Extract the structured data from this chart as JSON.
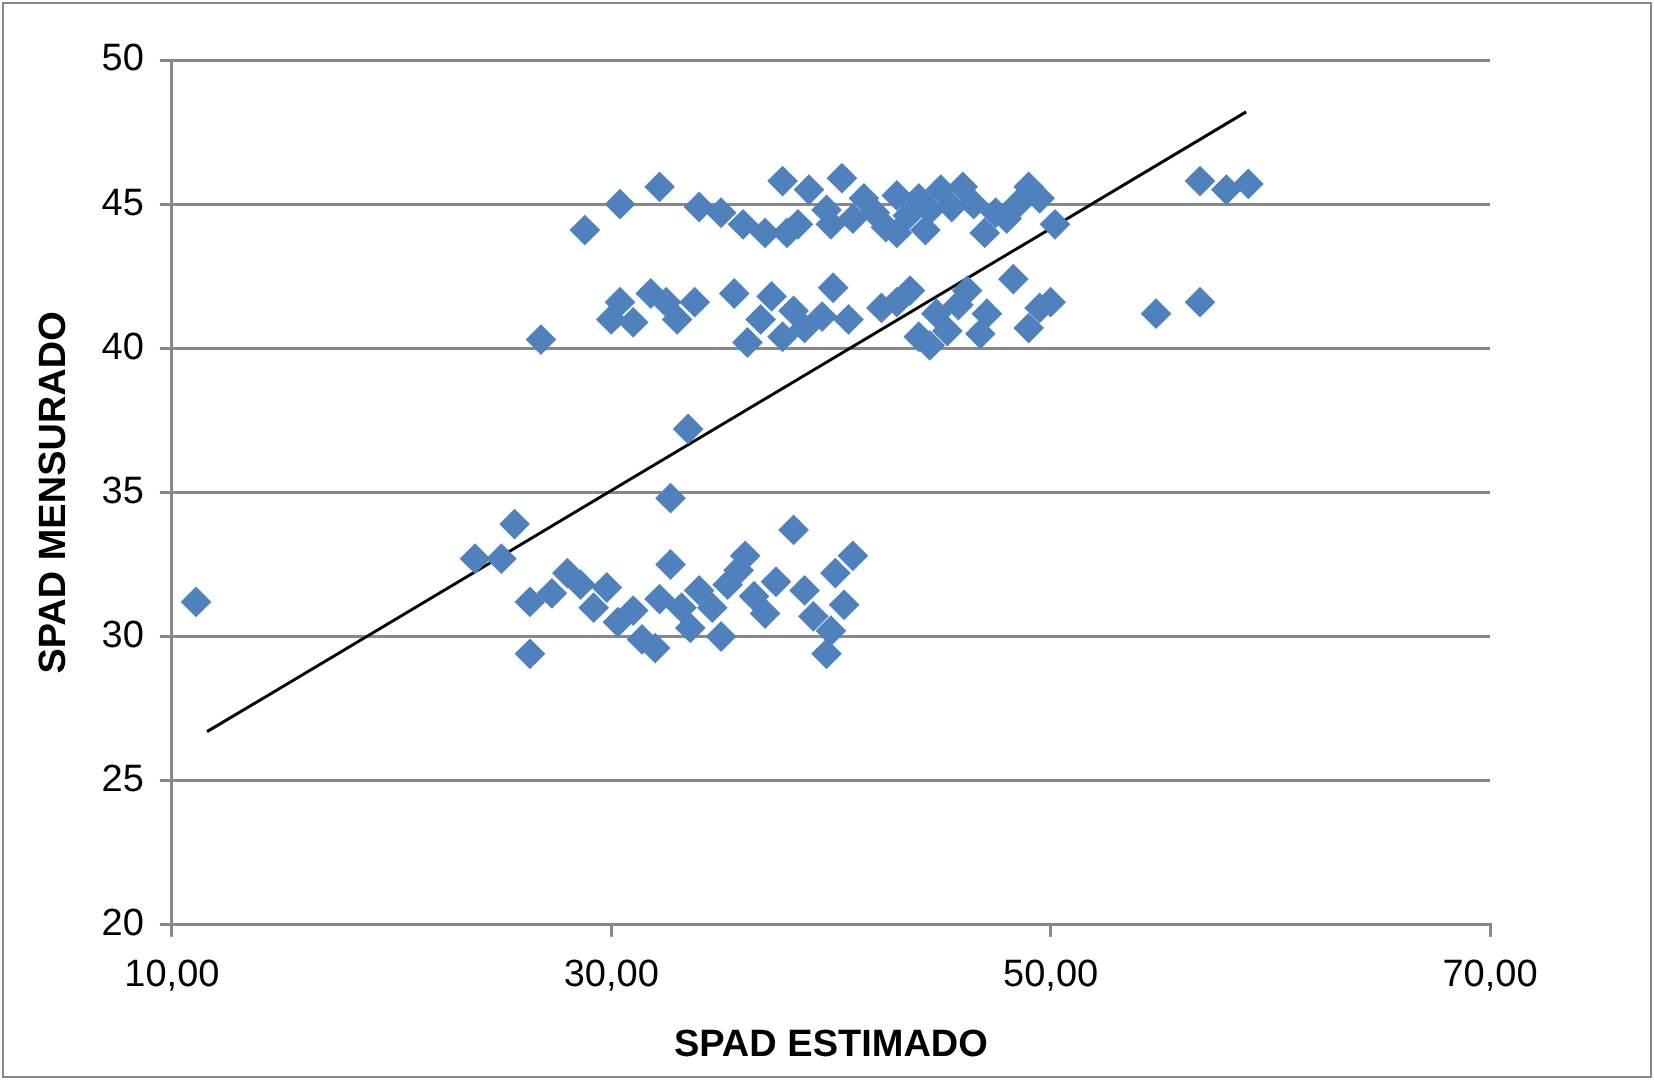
{
  "chart_data": {
    "type": "scatter",
    "xlabel": "SPAD ESTIMADO",
    "ylabel": "SPAD MENSURADO",
    "xlim": [
      10,
      70
    ],
    "xticks": [
      {
        "value": 10,
        "label": "10,00"
      },
      {
        "value": 30,
        "label": "30,00"
      },
      {
        "value": 50,
        "label": "50,00"
      },
      {
        "value": 70,
        "label": "70,00"
      }
    ],
    "ylim": [
      20,
      50
    ],
    "yticks": [
      20,
      25,
      30,
      35,
      40,
      45,
      50
    ],
    "grid": "y",
    "marker": "diamond",
    "series": [
      {
        "color": "#4f81bd",
        "x": [
          28.8,
          30.4,
          32.2,
          34.0,
          35.0,
          36.0,
          37.0,
          37.8,
          38.5,
          39.0,
          39.8,
          40.5,
          41.0,
          41.5,
          42.0,
          42.5,
          43.0,
          43.5,
          44.0,
          44.5,
          45.0,
          45.5,
          46.0,
          46.5,
          47.0,
          47.5,
          48.0,
          48.5,
          49.0,
          49.5,
          50.2,
          56.8,
          58.0,
          59.0,
          38.0,
          40.0,
          43.0,
          44.3,
          26.8,
          30.0,
          30.4,
          31.0,
          31.8,
          32.5,
          33.0,
          33.8,
          35.6,
          36.2,
          36.8,
          37.3,
          37.8,
          38.3,
          38.8,
          39.6,
          40.1,
          40.8,
          42.3,
          43.0,
          43.6,
          44.0,
          44.5,
          44.8,
          45.3,
          45.8,
          46.2,
          46.8,
          47.1,
          48.3,
          49.0,
          49.5,
          50.0,
          54.8,
          56.8,
          33.5,
          32.7,
          11.1,
          23.8,
          25.0,
          25.6,
          26.3,
          26.3,
          27.3,
          28.0,
          28.6,
          29.2,
          29.8,
          30.3,
          31.0,
          31.4,
          32.0,
          32.2,
          32.7,
          33.2,
          33.6,
          34.0,
          34.6,
          35.0,
          35.3,
          35.8,
          36.1,
          36.5,
          37.0,
          37.5,
          38.3,
          38.8,
          39.2,
          39.8,
          40.2,
          40.6,
          41.0,
          40.0
        ],
        "values": [
          44.1,
          45.0,
          45.6,
          44.9,
          44.7,
          44.3,
          44.0,
          45.8,
          44.3,
          45.5,
          44.8,
          45.9,
          44.5,
          45.2,
          44.7,
          44.2,
          45.3,
          44.6,
          45.2,
          44.8,
          45.5,
          44.9,
          45.6,
          45.0,
          44.0,
          44.7,
          44.5,
          45.0,
          45.6,
          45.2,
          44.3,
          45.8,
          45.5,
          45.7,
          44.0,
          44.3,
          44.0,
          44.1,
          40.3,
          41.0,
          41.6,
          40.9,
          41.9,
          41.6,
          41.0,
          41.6,
          41.9,
          40.2,
          41.0,
          41.8,
          40.4,
          41.3,
          40.7,
          41.1,
          42.1,
          41.0,
          41.4,
          41.6,
          42.0,
          40.4,
          40.1,
          41.2,
          40.6,
          41.5,
          42.0,
          40.5,
          41.2,
          42.4,
          40.7,
          41.4,
          41.6,
          41.2,
          41.6,
          37.2,
          34.8,
          31.2,
          32.7,
          32.7,
          33.9,
          31.2,
          29.4,
          31.5,
          32.2,
          31.8,
          31.0,
          31.7,
          30.5,
          30.9,
          29.9,
          29.6,
          31.3,
          32.5,
          31.0,
          30.3,
          31.6,
          31.0,
          30.0,
          31.8,
          32.3,
          32.8,
          31.4,
          30.8,
          31.9,
          33.7,
          31.6,
          30.7,
          29.4,
          32.2,
          31.1,
          32.8,
          30.2
        ]
      },
      {
        "type": "line",
        "color": "#000000",
        "marker": "none",
        "x": [
          11.6,
          58.9
        ],
        "values": [
          26.7,
          48.2
        ]
      }
    ]
  }
}
